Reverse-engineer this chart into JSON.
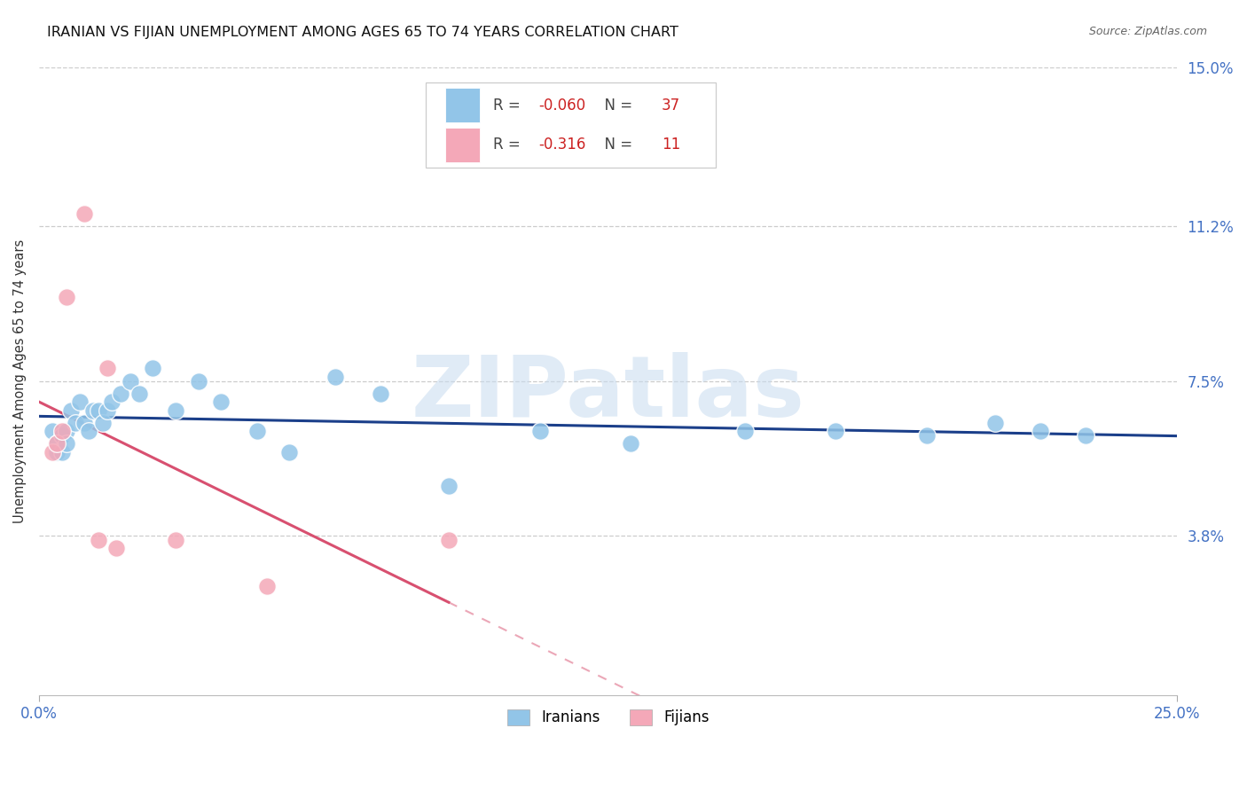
{
  "title": "IRANIAN VS FIJIAN UNEMPLOYMENT AMONG AGES 65 TO 74 YEARS CORRELATION CHART",
  "source": "Source: ZipAtlas.com",
  "ylabel": "Unemployment Among Ages 65 to 74 years",
  "xlim": [
    0.0,
    0.25
  ],
  "ylim": [
    0.0,
    0.15
  ],
  "ytick_positions": [
    0.15,
    0.112,
    0.075,
    0.038
  ],
  "ytick_labels": [
    "15.0%",
    "11.2%",
    "7.5%",
    "3.8%"
  ],
  "xtick_positions": [
    0.0,
    0.25
  ],
  "xtick_labels": [
    "0.0%",
    "25.0%"
  ],
  "iranians_x": [
    0.003,
    0.004,
    0.004,
    0.005,
    0.005,
    0.006,
    0.006,
    0.007,
    0.008,
    0.009,
    0.01,
    0.011,
    0.012,
    0.013,
    0.014,
    0.015,
    0.016,
    0.018,
    0.02,
    0.022,
    0.025,
    0.03,
    0.035,
    0.04,
    0.048,
    0.055,
    0.065,
    0.075,
    0.09,
    0.11,
    0.13,
    0.155,
    0.175,
    0.195,
    0.21,
    0.22,
    0.23
  ],
  "iranians_y": [
    0.063,
    0.06,
    0.058,
    0.062,
    0.058,
    0.063,
    0.06,
    0.068,
    0.065,
    0.07,
    0.065,
    0.063,
    0.068,
    0.068,
    0.065,
    0.068,
    0.07,
    0.072,
    0.075,
    0.072,
    0.078,
    0.068,
    0.075,
    0.07,
    0.063,
    0.058,
    0.076,
    0.072,
    0.05,
    0.063,
    0.06,
    0.063,
    0.063,
    0.062,
    0.065,
    0.063,
    0.062
  ],
  "fijians_x": [
    0.003,
    0.004,
    0.005,
    0.006,
    0.01,
    0.013,
    0.015,
    0.017,
    0.03,
    0.05,
    0.09
  ],
  "fijians_y": [
    0.058,
    0.06,
    0.063,
    0.095,
    0.115,
    0.037,
    0.078,
    0.035,
    0.037,
    0.026,
    0.037
  ],
  "iranian_R": -0.06,
  "iranian_N": 37,
  "fijian_R": -0.316,
  "fijian_N": 11,
  "iranian_color": "#92C5E8",
  "fijian_color": "#F4A8B8",
  "iranian_line_color": "#1B3F8A",
  "fijian_line_color": "#D85070",
  "grid_color": "#CCCCCC",
  "background_color": "#FFFFFF",
  "watermark_color": "#C8DCF0",
  "legend_R_color": "#CC2222",
  "legend_N_color": "#CC2222"
}
